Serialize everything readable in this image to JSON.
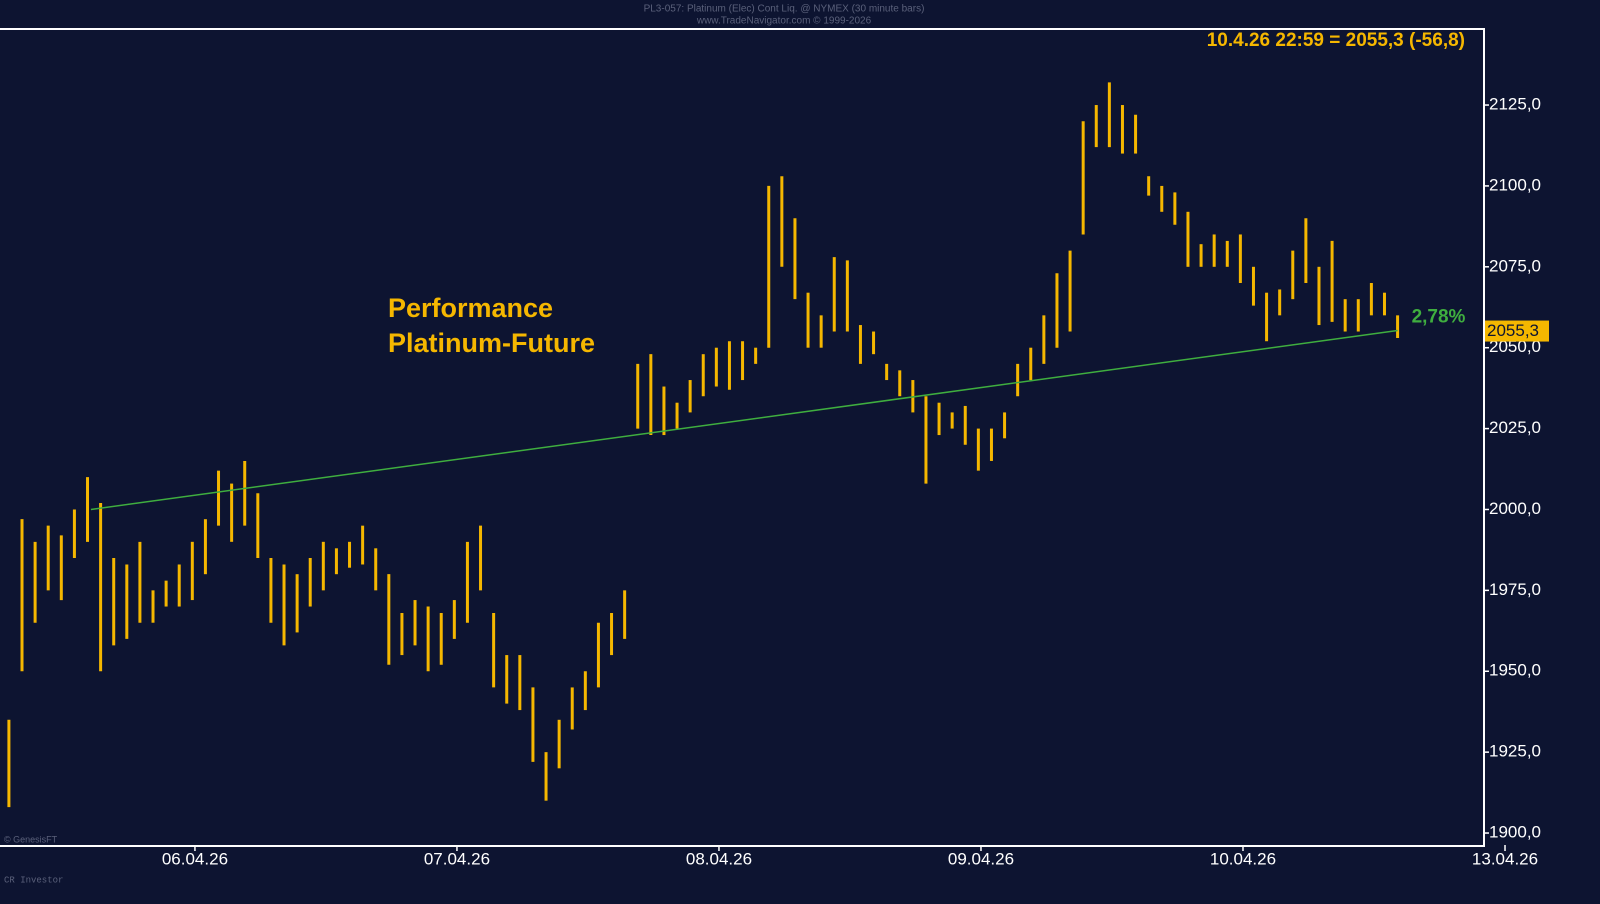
{
  "chart_data": {
    "type": "hlbar",
    "header": [
      "PL3-057: Platinum (Elec) Cont Liq. @ NYMEX (30 minute bars)",
      "www.TradeNavigator.com © 1999-2026"
    ],
    "last_info": "10.4.26 22:59 = 2055,3 (-56,8)",
    "annotation": [
      "Performance",
      "Platinum-Future"
    ],
    "footer": [
      "© GenesisFT",
      "CR Investor"
    ],
    "color": "#f5b700",
    "x": [
      0.29,
      0.34,
      0.39,
      0.44,
      0.49,
      0.54,
      0.59,
      0.64,
      0.69,
      0.74,
      0.79,
      0.84,
      0.89,
      0.94,
      0.99,
      1.04,
      1.09,
      1.14,
      1.19,
      1.24,
      1.29,
      1.34,
      1.39,
      1.44,
      1.49,
      1.54,
      1.59,
      1.64,
      1.69,
      1.74,
      1.79,
      1.84,
      1.89,
      1.94,
      1.99,
      2.04,
      2.09,
      2.14,
      2.19,
      2.24,
      2.29,
      2.34,
      2.39,
      2.44,
      2.49,
      2.54,
      2.59,
      2.64,
      2.69,
      2.74,
      2.79,
      2.84,
      2.89,
      2.94,
      2.99,
      3.04,
      3.09,
      3.14,
      3.19,
      3.24,
      3.29,
      3.34,
      3.39,
      3.44,
      3.49,
      3.54,
      3.59,
      3.64,
      3.69,
      3.74,
      3.79,
      3.84,
      3.89,
      3.94,
      3.99,
      4.04,
      4.09,
      4.14,
      4.19,
      4.24,
      4.29,
      4.34,
      4.39,
      4.44,
      4.49,
      4.54,
      4.59,
      4.64,
      4.69,
      4.74,
      4.79,
      4.84,
      4.89,
      4.94,
      4.99,
      5.04,
      5.09,
      5.14,
      5.19,
      5.24,
      5.29,
      5.34,
      5.39,
      5.44,
      5.49,
      5.54,
      5.59
    ],
    "high": [
      1935,
      1997,
      1990,
      1995,
      1992,
      2000,
      2010,
      2002,
      1985,
      1983,
      1990,
      1975,
      1978,
      1983,
      1990,
      1997,
      2012,
      2008,
      2015,
      2005,
      1985,
      1983,
      1980,
      1985,
      1990,
      1988,
      1990,
      1995,
      1988,
      1980,
      1968,
      1972,
      1970,
      1968,
      1972,
      1990,
      1995,
      1968,
      1955,
      1955,
      1945,
      1925,
      1935,
      1945,
      1950,
      1965,
      1968,
      1975,
      2045,
      2048,
      2038,
      2033,
      2040,
      2048,
      2050,
      2052,
      2052,
      2050,
      2100,
      2103,
      2090,
      2067,
      2060,
      2078,
      2077,
      2057,
      2055,
      2045,
      2043,
      2040,
      2035,
      2033,
      2030,
      2032,
      2025,
      2025,
      2030,
      2045,
      2050,
      2060,
      2073,
      2080,
      2120,
      2125,
      2132,
      2125,
      2122,
      2103,
      2100,
      2098,
      2092,
      2082,
      2085,
      2083,
      2085,
      2075,
      2067,
      2068,
      2080,
      2090,
      2075,
      2083,
      2065,
      2065,
      2070,
      2067,
      2060
    ],
    "low": [
      1908,
      1950,
      1965,
      1975,
      1972,
      1985,
      1990,
      1950,
      1958,
      1960,
      1965,
      1965,
      1970,
      1970,
      1972,
      1980,
      1995,
      1990,
      1995,
      1985,
      1965,
      1958,
      1962,
      1970,
      1975,
      1980,
      1982,
      1983,
      1975,
      1952,
      1955,
      1958,
      1950,
      1952,
      1960,
      1965,
      1975,
      1945,
      1940,
      1938,
      1922,
      1910,
      1920,
      1932,
      1938,
      1945,
      1955,
      1960,
      2025,
      2023,
      2023,
      2025,
      2030,
      2035,
      2038,
      2037,
      2040,
      2045,
      2050,
      2075,
      2065,
      2050,
      2050,
      2055,
      2055,
      2045,
      2048,
      2040,
      2035,
      2030,
      2008,
      2023,
      2025,
      2020,
      2012,
      2015,
      2022,
      2035,
      2040,
      2045,
      2050,
      2055,
      2085,
      2112,
      2112,
      2110,
      2110,
      2097,
      2092,
      2088,
      2075,
      2075,
      2075,
      2075,
      2070,
      2063,
      2052,
      2060,
      2065,
      2070,
      2057,
      2058,
      2055,
      2055,
      2060,
      2060,
      2053
    ],
    "trendline": {
      "x": [
        0.603,
        5.59
      ],
      "values": [
        2000,
        2055.3
      ],
      "color": "#3fae3f",
      "label": "2,78%"
    },
    "last_price": {
      "value": 2055.3,
      "label": "2055,3"
    },
    "xlim": [
      0.256,
      5.916
    ],
    "xticks": [
      {
        "value": 1,
        "label": "06.04.26"
      },
      {
        "value": 2,
        "label": "07.04.26"
      },
      {
        "value": 3,
        "label": "08.04.26"
      },
      {
        "value": 4,
        "label": "09.04.26"
      },
      {
        "value": 5,
        "label": "10.04.26"
      },
      {
        "value": 6,
        "label": "13.04.26"
      }
    ],
    "ylim": [
      1896.3,
      2148.5
    ],
    "yticks": [
      {
        "value": 1900,
        "label": "1900,0"
      },
      {
        "value": 1925,
        "label": "1925,0"
      },
      {
        "value": 1950,
        "label": "1950,0"
      },
      {
        "value": 1975,
        "label": "1975,0"
      },
      {
        "value": 2000,
        "label": "2000,0"
      },
      {
        "value": 2025,
        "label": "2025,0"
      },
      {
        "value": 2050,
        "label": "2050,0"
      },
      {
        "value": 2075,
        "label": "2075,0"
      },
      {
        "value": 2100,
        "label": "2100,0"
      },
      {
        "value": 2125,
        "label": "2125,0"
      }
    ]
  }
}
